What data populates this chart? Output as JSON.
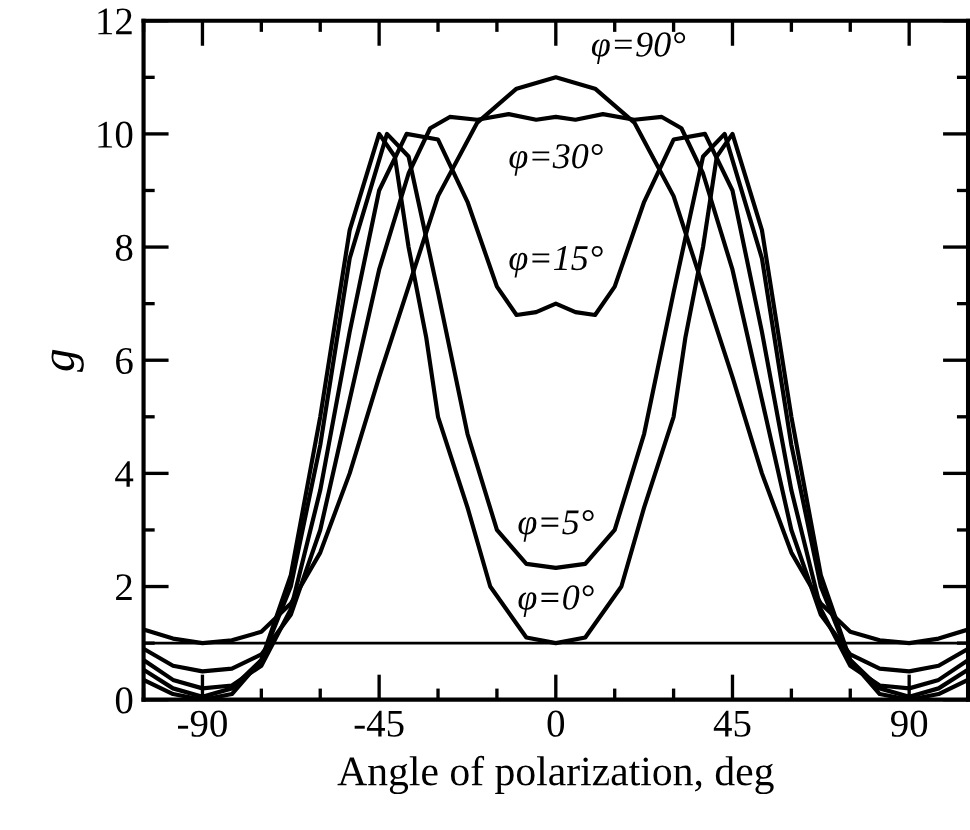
{
  "chart_data": {
    "type": "line",
    "xlabel": "Angle of polarization, deg",
    "ylabel": "g",
    "xlim": [
      -105,
      105
    ],
    "ylim": [
      0,
      12
    ],
    "xticks": [
      -90,
      -45,
      0,
      45,
      90
    ],
    "yticks": [
      0,
      2,
      4,
      6,
      8,
      10,
      12
    ],
    "grid": false,
    "line_style": "solid",
    "marker": "none",
    "ref_lines": [
      {
        "axis": "y",
        "value": 1,
        "color": "#000000"
      }
    ],
    "series": [
      {
        "name": "φ=0°",
        "color": "#000000",
        "x": [
          -105,
          -97.5,
          -90,
          -82.5,
          -75,
          -67.5,
          -60,
          -52.5,
          -45,
          -41,
          -37.5,
          -33,
          -30,
          -22.5,
          -16.7,
          -7.5,
          0,
          7.5,
          16.7,
          22.5,
          30,
          33,
          37.5,
          41,
          45,
          52.5,
          60,
          67.5,
          75,
          82.5,
          90,
          97.5,
          105
        ],
        "values": [
          0.35,
          0.1,
          0.0,
          0.1,
          0.7,
          2.2,
          5.0,
          8.3,
          10.0,
          9.6,
          8.0,
          6.4,
          5.0,
          3.4,
          2.0,
          1.1,
          1.0,
          1.1,
          2.0,
          3.4,
          5.0,
          6.4,
          8.0,
          9.6,
          10.0,
          8.3,
          5.0,
          2.2,
          0.7,
          0.1,
          0.0,
          0.1,
          0.35
        ]
      },
      {
        "name": "φ=5°",
        "color": "#000000",
        "x": [
          -105,
          -97.5,
          -90,
          -82.5,
          -75,
          -67.5,
          -60,
          -52.5,
          -43,
          -37.5,
          -30,
          -22.5,
          -15,
          -7.5,
          0,
          7.5,
          15,
          22.5,
          30,
          37.5,
          43,
          52.5,
          60,
          67.5,
          75,
          82.5,
          90,
          97.5,
          105
        ],
        "values": [
          0.53,
          0.2,
          0.05,
          0.2,
          0.7,
          2.0,
          4.5,
          7.8,
          10.0,
          9.6,
          7.2,
          4.7,
          3.0,
          2.4,
          2.33,
          2.4,
          3.0,
          4.7,
          7.2,
          9.6,
          10.0,
          7.8,
          4.5,
          2.0,
          0.7,
          0.2,
          0.05,
          0.2,
          0.53
        ]
      },
      {
        "name": "φ=15°",
        "color": "#000000",
        "x": [
          -105,
          -97.5,
          -90,
          -82.5,
          -75,
          -67.5,
          -60,
          -52.5,
          -45,
          -38,
          -30,
          -22.5,
          -15,
          -10,
          -5,
          0,
          5,
          10,
          15,
          22.5,
          30,
          38,
          45,
          52.5,
          60,
          67.5,
          75,
          82.5,
          90,
          97.5,
          105
        ],
        "values": [
          0.7,
          0.35,
          0.2,
          0.25,
          0.6,
          1.6,
          3.7,
          6.5,
          9.0,
          10.0,
          9.9,
          8.8,
          7.3,
          6.8,
          6.85,
          7.0,
          6.85,
          6.8,
          7.3,
          8.8,
          9.9,
          10.0,
          9.0,
          6.5,
          3.7,
          1.6,
          0.6,
          0.25,
          0.2,
          0.35,
          0.7
        ]
      },
      {
        "name": "φ=30°",
        "color": "#000000",
        "x": [
          -105,
          -97.5,
          -90,
          -82.5,
          -75,
          -67.5,
          -60,
          -52.5,
          -45,
          -37.5,
          -32,
          -27,
          -20,
          -12,
          -5,
          0,
          5,
          12,
          20,
          27,
          32,
          37.5,
          45,
          52.5,
          60,
          67.5,
          75,
          82.5,
          90,
          97.5,
          105
        ],
        "values": [
          0.9,
          0.6,
          0.5,
          0.55,
          0.8,
          1.5,
          3.0,
          5.3,
          7.6,
          9.3,
          10.1,
          10.3,
          10.25,
          10.35,
          10.25,
          10.3,
          10.25,
          10.35,
          10.25,
          10.3,
          10.1,
          9.3,
          7.6,
          5.3,
          3.0,
          1.5,
          0.8,
          0.55,
          0.5,
          0.6,
          0.9
        ]
      },
      {
        "name": "φ=90°",
        "color": "#000000",
        "x": [
          -105,
          -97.5,
          -90,
          -82.5,
          -75,
          -67.5,
          -60,
          -52.5,
          -45,
          -37.5,
          -30,
          -20,
          -10,
          0,
          10,
          20,
          30,
          37.5,
          45,
          52.5,
          60,
          67.5,
          75,
          82.5,
          90,
          97.5,
          105
        ],
        "values": [
          1.24,
          1.08,
          1.0,
          1.05,
          1.2,
          1.7,
          2.6,
          4.0,
          5.7,
          7.3,
          8.9,
          10.2,
          10.8,
          11.0,
          10.8,
          10.2,
          8.9,
          7.3,
          5.7,
          4.0,
          2.6,
          1.7,
          1.2,
          1.05,
          1.0,
          1.08,
          1.24
        ]
      }
    ]
  }
}
